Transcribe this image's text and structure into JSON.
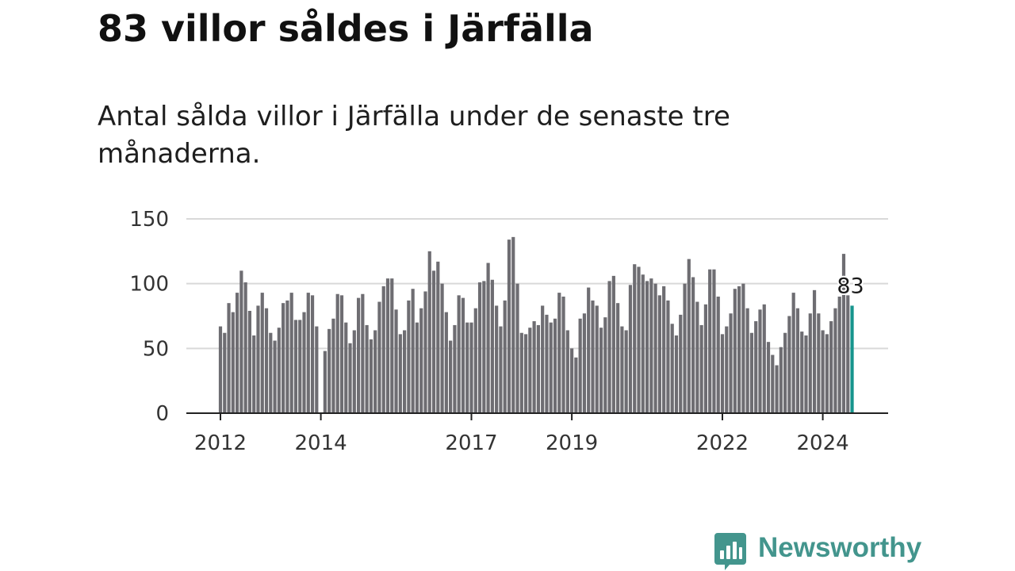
{
  "title": "83 villor såldes i Järfälla",
  "subtitle": "Antal sålda villor i Järfälla under de senaste tre månaderna.",
  "brand": {
    "name": "Newsworthy",
    "color": "#43958d"
  },
  "colors": {
    "bar": "#6e6d72",
    "highlight": "#17958d",
    "grid": "#d9d9d9",
    "axis": "#222222"
  },
  "chart_data": {
    "type": "bar",
    "title": "83 villor såldes i Järfälla",
    "subtitle": "Antal sålda villor i Järfälla under de senaste tre månaderna.",
    "xlabel": "",
    "ylabel": "",
    "ylim": [
      0,
      150
    ],
    "yticks": [
      0,
      50,
      100,
      150
    ],
    "grid": true,
    "start": "2012-01",
    "xticks": [
      {
        "label": "2012",
        "index": 0
      },
      {
        "label": "2014",
        "index": 24
      },
      {
        "label": "2017",
        "index": 60
      },
      {
        "label": "2019",
        "index": 84
      },
      {
        "label": "2022",
        "index": 120
      },
      {
        "label": "2024",
        "index": 144
      }
    ],
    "highlight": {
      "index": 151,
      "label": "83",
      "value": 83
    },
    "values": [
      67,
      62,
      85,
      78,
      93,
      110,
      101,
      79,
      60,
      83,
      93,
      81,
      62,
      56,
      66,
      85,
      87,
      93,
      72,
      72,
      78,
      93,
      91,
      67,
      0,
      48,
      65,
      73,
      92,
      91,
      70,
      54,
      64,
      89,
      92,
      68,
      57,
      64,
      86,
      98,
      104,
      104,
      80,
      61,
      64,
      87,
      96,
      70,
      81,
      94,
      125,
      110,
      117,
      100,
      78,
      56,
      68,
      91,
      89,
      70,
      70,
      81,
      101,
      102,
      116,
      103,
      83,
      67,
      87,
      134,
      136,
      100,
      62,
      61,
      66,
      71,
      68,
      83,
      76,
      70,
      73,
      93,
      90,
      64,
      50,
      43,
      73,
      77,
      97,
      87,
      83,
      66,
      74,
      102,
      106,
      85,
      67,
      64,
      99,
      115,
      113,
      107,
      102,
      104,
      100,
      91,
      98,
      87,
      69,
      60,
      76,
      100,
      119,
      105,
      86,
      68,
      84,
      111,
      111,
      90,
      61,
      67,
      77,
      96,
      98,
      100,
      81,
      62,
      71,
      80,
      84,
      55,
      45,
      37,
      51,
      62,
      75,
      93,
      81,
      63,
      60,
      77,
      95,
      77,
      64,
      61,
      71,
      81,
      90,
      123,
      91,
      83
    ]
  }
}
